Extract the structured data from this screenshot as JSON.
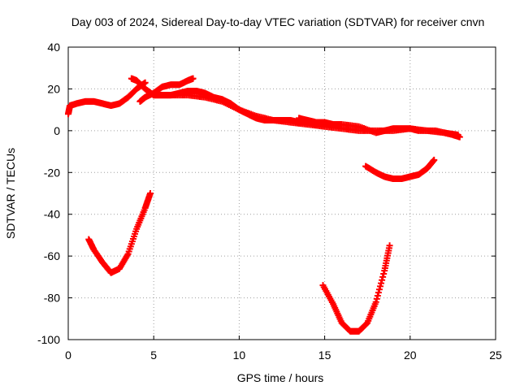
{
  "chart_data": {
    "type": "scatter",
    "title": "Day 003 of 2024, Sidereal Day-to-day VTEC variation (SDTVAR) for receiver cnvn",
    "xlabel": "GPS time / hours",
    "ylabel": "SDTVAR / TECUs",
    "xlim": [
      0,
      25
    ],
    "ylim": [
      -100,
      40
    ],
    "xticks": [
      0,
      5,
      10,
      15,
      20,
      25
    ],
    "yticks": [
      -100,
      -80,
      -60,
      -40,
      -20,
      0,
      20,
      40
    ],
    "grid": true,
    "marker": "plus",
    "color": "#ff0000",
    "series": [
      {
        "points": [
          [
            0.0,
            8
          ],
          [
            0.1,
            12
          ],
          [
            0.5,
            13
          ],
          [
            1.0,
            14
          ],
          [
            1.5,
            14
          ],
          [
            2.0,
            13
          ],
          [
            2.5,
            12
          ],
          [
            3.0,
            13
          ],
          [
            3.5,
            16
          ],
          [
            4.0,
            20
          ],
          [
            4.5,
            23
          ]
        ]
      },
      {
        "points": [
          [
            3.7,
            25
          ],
          [
            4.0,
            24
          ],
          [
            4.5,
            20
          ],
          [
            5.0,
            17
          ],
          [
            5.5,
            17
          ],
          [
            6.0,
            17
          ],
          [
            6.5,
            18
          ],
          [
            7.0,
            19
          ],
          [
            7.5,
            19
          ],
          [
            8.0,
            18
          ],
          [
            8.5,
            16
          ],
          [
            9.0,
            15
          ],
          [
            9.5,
            13
          ],
          [
            10.0,
            10
          ],
          [
            10.5,
            8
          ],
          [
            11.0,
            6
          ],
          [
            11.5,
            5
          ],
          [
            12.0,
            5
          ],
          [
            12.5,
            5
          ],
          [
            13.0,
            5
          ],
          [
            13.5,
            4
          ],
          [
            14.0,
            4
          ],
          [
            14.5,
            3
          ],
          [
            15.0,
            3
          ]
        ]
      },
      {
        "points": [
          [
            4.2,
            14
          ],
          [
            4.5,
            16
          ],
          [
            5.0,
            18
          ],
          [
            5.5,
            21
          ],
          [
            6.0,
            22
          ],
          [
            6.5,
            22
          ],
          [
            7.0,
            24
          ],
          [
            7.3,
            25
          ]
        ]
      },
      {
        "points": [
          [
            5.0,
            17
          ],
          [
            6.0,
            17
          ],
          [
            7.0,
            17
          ],
          [
            8.0,
            16
          ],
          [
            9.0,
            14
          ],
          [
            10.0,
            10
          ],
          [
            11.0,
            7
          ],
          [
            12.0,
            5
          ],
          [
            13.0,
            4
          ],
          [
            14.0,
            3
          ],
          [
            15.0,
            2
          ],
          [
            16.0,
            1
          ],
          [
            17.0,
            0
          ],
          [
            18.0,
            0
          ],
          [
            19.0,
            0
          ],
          [
            20.0,
            1
          ],
          [
            21.0,
            0
          ],
          [
            22.0,
            -1
          ],
          [
            22.8,
            -2
          ]
        ]
      },
      {
        "points": [
          [
            13.5,
            6
          ],
          [
            14.0,
            5
          ],
          [
            14.5,
            4
          ],
          [
            15.0,
            4
          ],
          [
            15.5,
            3
          ],
          [
            16.0,
            3
          ],
          [
            17.0,
            2
          ],
          [
            18.0,
            -1
          ],
          [
            18.5,
            0
          ],
          [
            19.0,
            1
          ],
          [
            19.5,
            1
          ],
          [
            20.0,
            1
          ],
          [
            20.5,
            0
          ],
          [
            21.5,
            0
          ],
          [
            22.5,
            -2
          ],
          [
            22.9,
            -3
          ]
        ]
      },
      {
        "points": [
          [
            1.2,
            -52
          ],
          [
            1.5,
            -57
          ],
          [
            2.0,
            -63
          ],
          [
            2.5,
            -68
          ],
          [
            3.0,
            -66
          ],
          [
            3.5,
            -59
          ],
          [
            4.0,
            -47
          ],
          [
            4.5,
            -37
          ],
          [
            4.8,
            -30
          ]
        ]
      },
      {
        "points": [
          [
            17.4,
            -17
          ],
          [
            18.0,
            -20
          ],
          [
            18.5,
            -22
          ],
          [
            19.0,
            -23
          ],
          [
            19.5,
            -23
          ],
          [
            20.0,
            -22
          ],
          [
            20.5,
            -21
          ],
          [
            21.0,
            -18
          ],
          [
            21.4,
            -14
          ]
        ]
      },
      {
        "points": [
          [
            14.9,
            -74
          ],
          [
            15.5,
            -83
          ],
          [
            16.0,
            -92
          ],
          [
            16.5,
            -96
          ],
          [
            17.0,
            -96
          ],
          [
            17.5,
            -92
          ],
          [
            18.0,
            -82
          ],
          [
            18.5,
            -67
          ],
          [
            18.8,
            -55
          ]
        ]
      }
    ]
  }
}
